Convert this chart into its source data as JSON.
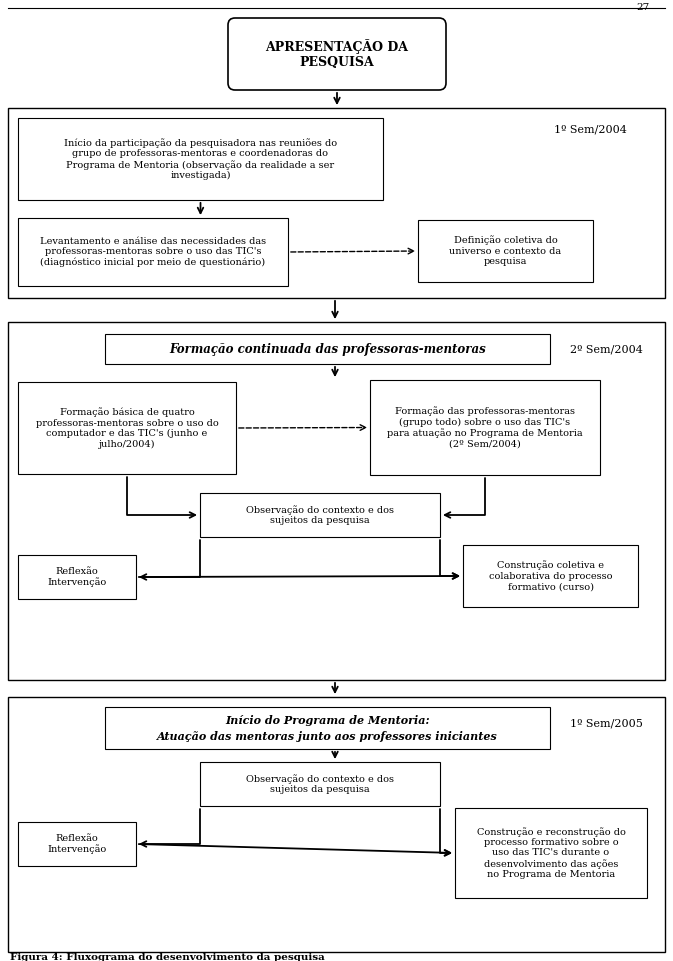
{
  "bg_color": "#ffffff",
  "caption": "Figura 4: Fluxograma do desenvolvimento da pesquisa",
  "page_num": "27",
  "b1_text": "APRESENTAÇÃO DA\nPESQUISA",
  "b2_text": "Início da participação da pesquisadora nas reuniões do\ngrupo de professoras-mentoras e coordenadoras do\nPrograma de Mentoria (observação da realidade a ser\ninvestigada)",
  "b3_text": "Levantamento e análise das necessidades das\nprofessoras-mentoras sobre o uso das TIC's\n(diagnóstico inicial por meio de questionário)",
  "b4_text": "Definição coletiva do\nuniverso e contexto da\npesquisa",
  "lbl1": "1º Sem/2004",
  "b5_text": "Formação continuada das professoras-mentoras",
  "lbl2": "2º Sem/2004",
  "b6_text": "Formação básica de quatro\nprofessoras-mentoras sobre o uso do\ncomputador e das TIC's (junho e\njulho/2004)",
  "b7_text": "Formação das professoras-mentoras\n(grupo todo) sobre o uso das TIC's\npara atuação no Programa de Mentoria\n(2º Sem/2004)",
  "b8_text": "Observação do contexto e dos\nsujeitos da pesquisa",
  "b9_text": "Reflexão\nIntervenção",
  "b10_text": "Construção coletiva e\ncolaborativa do processo\nformativo (curso)",
  "b11_text": "Início do Programa de Mentoria:\nAtuação das mentoras junto aos professores iniciantes",
  "lbl3": "1º Sem/2005",
  "b12_text": "Observação do contexto e dos\nsujeitos da pesquisa",
  "b13_text": "Reflexão\nIntervenção",
  "b14_text": "Construção e reconstrução do\nprocesso formativo sobre o\nuso das TIC's durante o\ndesenvolvimento das ações\nno Programa de Mentoria"
}
